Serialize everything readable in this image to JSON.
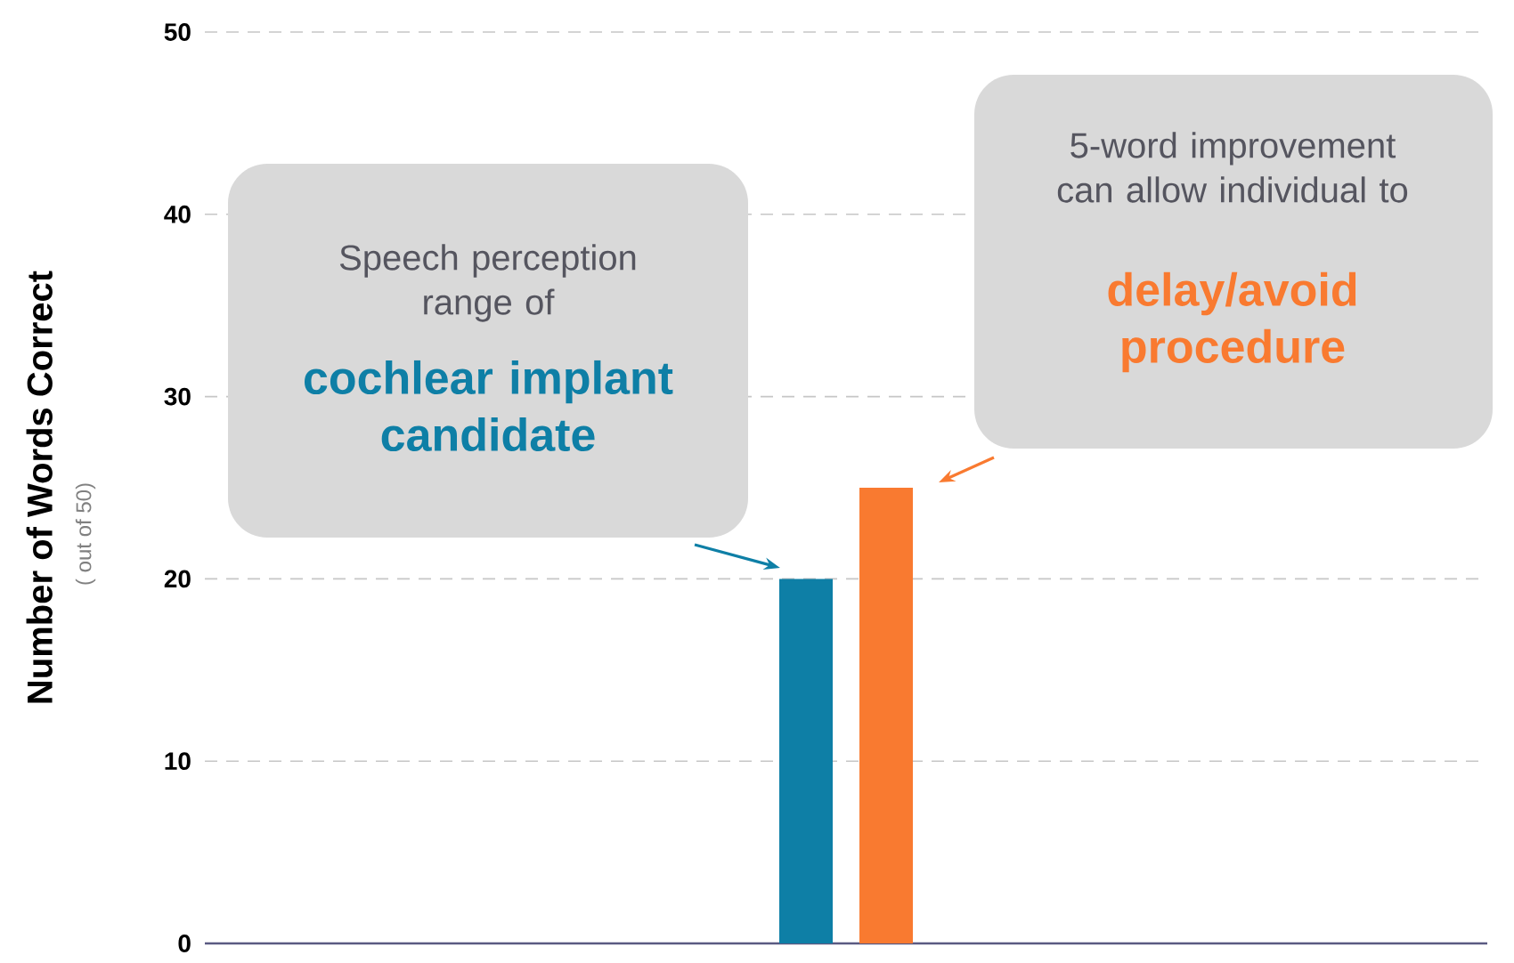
{
  "chart_data": {
    "type": "bar",
    "categories": [
      null,
      null,
      null,
      null,
      null,
      null,
      null,
      null,
      null,
      null,
      null,
      null,
      null,
      null,
      null,
      null
    ],
    "values": [
      null,
      null,
      null,
      null,
      null,
      null,
      null,
      20,
      25,
      null,
      null,
      null,
      null,
      null,
      null,
      null
    ],
    "colors": [
      "#0e7fa6",
      "#0e7fa6",
      "#0e7fa6",
      "#0e7fa6",
      "#0e7fa6",
      "#0e7fa6",
      "#0e7fa6",
      "#0e7fa6",
      "#f97a30",
      "#0e7fa6",
      "#0e7fa6",
      "#0e7fa6",
      "#0e7fa6",
      "#0e7fa6",
      "#0e7fa6",
      "#0e7fa6"
    ],
    "ylim": [
      0,
      50
    ],
    "yticks": [
      0,
      10,
      20,
      30,
      40,
      50
    ],
    "grid": "y",
    "ylabel": "Number of Words Correct",
    "annotations": [
      "Speech perception range of",
      "cochlear implant candidate",
      "5-word improvement can allow individual to",
      "delay/avoid procedure",
      "( out of 50)"
    ]
  }
}
